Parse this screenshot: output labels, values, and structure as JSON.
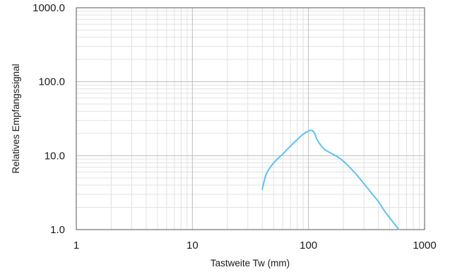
{
  "chart_data": {
    "type": "line",
    "title": "",
    "xlabel": "Tastweite Tw (mm)",
    "ylabel": "Relatives Empfangssignal",
    "x_scale": "log",
    "y_scale": "log",
    "xlim": [
      1,
      1000
    ],
    "ylim": [
      1,
      1000
    ],
    "x_ticks": [
      1,
      10,
      100,
      1000
    ],
    "x_tick_labels": [
      "1",
      "10",
      "100",
      "1000"
    ],
    "y_ticks": [
      1,
      10,
      100,
      1000
    ],
    "y_tick_labels": [
      "1.0",
      "10.0",
      "100.0",
      "1000.0"
    ],
    "grid": true,
    "colors": {
      "series": "#5bc3ee",
      "grid_major": "#bdbdbd",
      "grid_minor": "#e2e2e2",
      "axis": "#555555"
    },
    "series": [
      {
        "x": [
          40,
          43,
          47,
          52,
          60,
          70,
          80,
          90,
          100,
          106,
          112,
          120,
          135,
          150,
          175,
          200,
          250,
          300,
          350,
          400,
          450,
          500,
          550,
          600
        ],
        "y": [
          3.5,
          5.5,
          7.0,
          8.5,
          10.5,
          13.5,
          16.5,
          19.5,
          21.5,
          22.0,
          20.5,
          16.0,
          12.5,
          11.2,
          9.8,
          8.4,
          5.9,
          4.2,
          3.1,
          2.4,
          1.8,
          1.45,
          1.2,
          1.0
        ]
      }
    ]
  }
}
